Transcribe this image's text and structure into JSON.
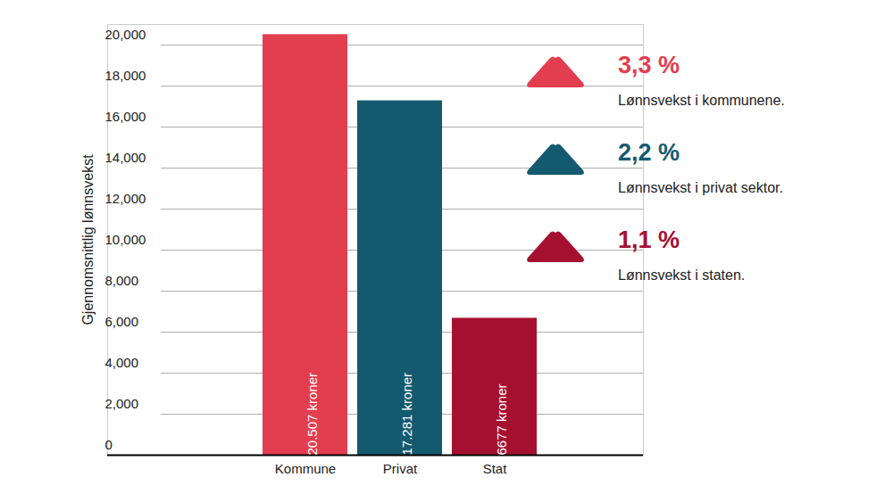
{
  "chart_data": {
    "type": "bar",
    "ylabel": "Gjennomsnittlig lønnsvekst",
    "categories": [
      "Kommune",
      "Privat",
      "Stat"
    ],
    "values": [
      20507,
      17281,
      6677
    ],
    "value_labels": [
      "20.507 kroner",
      "17.281 kroner",
      "6677 kroner"
    ],
    "colors": [
      "#e33d50",
      "#145a6f",
      "#a61030"
    ],
    "data_labels": true,
    "ylim": [
      0,
      21000
    ],
    "yticks": [
      0,
      {
        "value": 2000,
        "label": "2,000"
      },
      {
        "value": 4000,
        "label": "4,000"
      },
      {
        "value": 6000,
        "label": "6,000"
      },
      {
        "value": 8000,
        "label": "8,000"
      },
      {
        "value": 10000,
        "label": "10,000"
      },
      {
        "value": 12000,
        "label": "12,000"
      },
      {
        "value": 14000,
        "label": "14,000"
      },
      {
        "value": 16000,
        "label": "16,000"
      },
      {
        "value": 18000,
        "label": "18,000"
      },
      {
        "value": 20000,
        "label": "20,000"
      }
    ],
    "grid": true,
    "annotations": [
      {
        "value": 3.3,
        "label": "3,3 %",
        "text": "Lønnsvekst i kommunene.",
        "color": "#e33d50"
      },
      {
        "value": 2.2,
        "label": "2,2 %",
        "text": "Lønnsvekst i privat sektor.",
        "color": "#145a6f"
      },
      {
        "value": 1.1,
        "label": "1,1 %",
        "text": "Lønnsvekst i staten.",
        "color": "#a61030"
      }
    ]
  }
}
